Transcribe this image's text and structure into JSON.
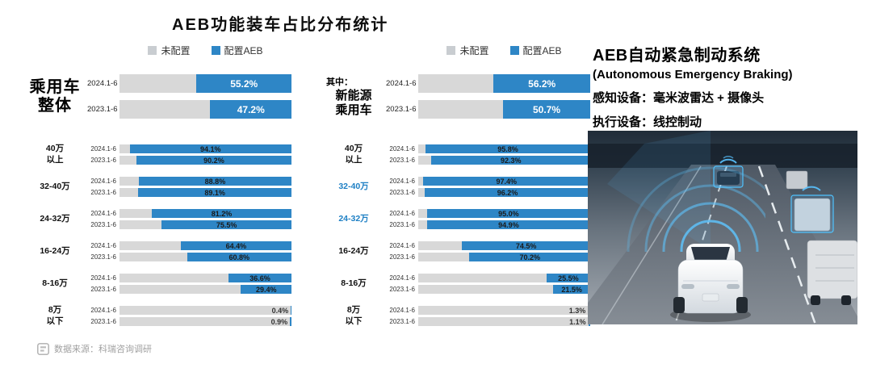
{
  "title": "AEB功能装车占比分布统计",
  "legend": {
    "not_equipped": "未配置",
    "equipped": "配置AEB"
  },
  "info_panel": {
    "title": "AEB自动紧急制动系统",
    "subtitle": "(Autonomous Emergency Braking)",
    "perception_label": "感知设备：",
    "perception_value": "毫米波雷达 + 摄像头",
    "actuation_label": "执行设备：",
    "actuation_value": "线控制动"
  },
  "footer": {
    "source": "数据来源：科瑞咨询调研"
  },
  "colors": {
    "aeb_blue": "#2e86c6",
    "track_gray": "#d8d8d8",
    "highlight_blue": "#1d7fc4"
  },
  "chart_data": {
    "type": "bar",
    "orientation": "horizontal",
    "stacking": "100%-stacked (gray = 未配置, blue = 配置AEB)",
    "unit": "%",
    "title": "AEB功能装车占比分布统计",
    "legend": [
      "未配置",
      "配置AEB"
    ],
    "xlim": [
      0,
      100
    ],
    "charts": [
      {
        "name": "乘用车整体",
        "group_prefix": "",
        "group_label_lines": [
          "乘用车",
          "整体"
        ],
        "summary_rows": [
          {
            "period": "2024.1-6",
            "aeb_pct": 55.2
          },
          {
            "period": "2023.1-6",
            "aeb_pct": 47.2
          }
        ],
        "categories": [
          {
            "label_lines": [
              "40万",
              "以上"
            ],
            "highlight": false,
            "rows": [
              {
                "period": "2024.1-6",
                "aeb_pct": 94.1
              },
              {
                "period": "2023.1-6",
                "aeb_pct": 90.2
              }
            ]
          },
          {
            "label_lines": [
              "32-40万"
            ],
            "highlight": false,
            "rows": [
              {
                "period": "2024.1-6",
                "aeb_pct": 88.8
              },
              {
                "period": "2023.1-6",
                "aeb_pct": 89.1
              }
            ]
          },
          {
            "label_lines": [
              "24-32万"
            ],
            "highlight": false,
            "rows": [
              {
                "period": "2024.1-6",
                "aeb_pct": 81.2
              },
              {
                "period": "2023.1-6",
                "aeb_pct": 75.5
              }
            ]
          },
          {
            "label_lines": [
              "16-24万"
            ],
            "highlight": false,
            "rows": [
              {
                "period": "2024.1-6",
                "aeb_pct": 64.4
              },
              {
                "period": "2023.1-6",
                "aeb_pct": 60.8
              }
            ]
          },
          {
            "label_lines": [
              "8-16万"
            ],
            "highlight": false,
            "rows": [
              {
                "period": "2024.1-6",
                "aeb_pct": 36.6
              },
              {
                "period": "2023.1-6",
                "aeb_pct": 29.4
              }
            ]
          },
          {
            "label_lines": [
              "8万",
              "以下"
            ],
            "highlight": false,
            "rows": [
              {
                "period": "2024.1-6",
                "aeb_pct": 0.4
              },
              {
                "period": "2023.1-6",
                "aeb_pct": 0.9
              }
            ]
          }
        ]
      },
      {
        "name": "新能源乘用车",
        "group_prefix": "其中：",
        "group_label_lines": [
          "新能源",
          "乘用车"
        ],
        "summary_rows": [
          {
            "period": "2024.1-6",
            "aeb_pct": 56.2
          },
          {
            "period": "2023.1-6",
            "aeb_pct": 50.7
          }
        ],
        "categories": [
          {
            "label_lines": [
              "40万",
              "以上"
            ],
            "highlight": false,
            "rows": [
              {
                "period": "2024.1-6",
                "aeb_pct": 95.8
              },
              {
                "period": "2023.1-6",
                "aeb_pct": 92.3
              }
            ]
          },
          {
            "label_lines": [
              "32-40万"
            ],
            "highlight": true,
            "rows": [
              {
                "period": "2024.1-6",
                "aeb_pct": 97.4
              },
              {
                "period": "2023.1-6",
                "aeb_pct": 96.2
              }
            ]
          },
          {
            "label_lines": [
              "24-32万"
            ],
            "highlight": true,
            "rows": [
              {
                "period": "2024.1-6",
                "aeb_pct": 95.0
              },
              {
                "period": "2023.1-6",
                "aeb_pct": 94.9
              }
            ]
          },
          {
            "label_lines": [
              "16-24万"
            ],
            "highlight": false,
            "rows": [
              {
                "period": "2024.1-6",
                "aeb_pct": 74.5
              },
              {
                "period": "2023.1-6",
                "aeb_pct": 70.2
              }
            ]
          },
          {
            "label_lines": [
              "8-16万"
            ],
            "highlight": false,
            "rows": [
              {
                "period": "2024.1-6",
                "aeb_pct": 25.5
              },
              {
                "period": "2023.1-6",
                "aeb_pct": 21.5
              }
            ]
          },
          {
            "label_lines": [
              "8万",
              "以下"
            ],
            "highlight": false,
            "rows": [
              {
                "period": "2024.1-6",
                "aeb_pct": 1.3
              },
              {
                "period": "2023.1-6",
                "aeb_pct": 1.1
              }
            ]
          }
        ]
      }
    ]
  }
}
